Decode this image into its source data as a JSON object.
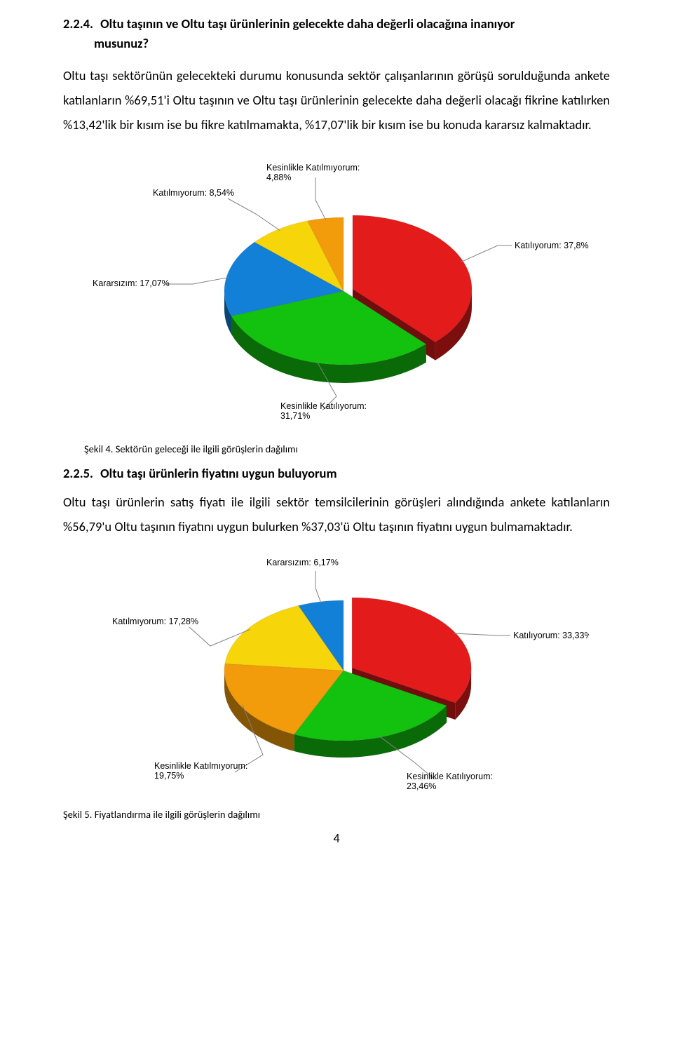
{
  "section1": {
    "number": "2.2.4.",
    "title_line1": "Oltu taşının ve Oltu taşı ürünlerinin gelecekte daha değerli olacağına inanıyor",
    "title_line2": "musunuz?",
    "paragraph": "Oltu taşı sektörünün gelecekteki durumu konusunda sektör çalışanlarının görüşü sorulduğunda ankete katılanların %69,51'i Oltu taşının ve Oltu taşı ürünlerinin gelecekte daha değerli olacağı fikrine katılırken %13,42'lik bir kısım ise bu fikre katılmamakta, %17,07'lik bir kısım ise bu konuda kararsız kalmaktadır."
  },
  "chart1": {
    "type": "pie",
    "background_color": "#ffffff",
    "slices": [
      {
        "label": "Katılıyorum:",
        "pct": "37,8%",
        "value": 37.8,
        "color": "#e31b1b"
      },
      {
        "label": "Kesinlikle Katılıyorum:",
        "pct": "31,71%",
        "value": 31.71,
        "color": "#13c20f"
      },
      {
        "label": "Kararsızım:",
        "pct": "17,07%",
        "value": 17.07,
        "color": "#1280d6"
      },
      {
        "label": "Katılmıyorum:",
        "pct": "8,54%",
        "value": 8.54,
        "color": "#f7d50b"
      },
      {
        "label": "Kesinlikle Katılmıyorum:",
        "pct": "4,88%",
        "value": 4.88,
        "color": "#f29b0b"
      }
    ],
    "label_fontsize": 12.5,
    "pulled_slice_index": 0,
    "caption": "Şekil 4. Sektörün geleceği ile ilgili görüşlerin dağılımı"
  },
  "section2": {
    "number": "2.2.5.",
    "title": "Oltu taşı ürünlerin fiyatını uygun buluyorum",
    "paragraph": "Oltu taşı ürünlerin satış fiyatı ile ilgili sektör temsilcilerinin görüşleri alındığında ankete katılanların %56,79'u Oltu taşının fiyatını uygun bulurken %37,03'ü Oltu taşının fiyatını uygun bulmamaktadır."
  },
  "chart2": {
    "type": "pie",
    "background_color": "#ffffff",
    "slices": [
      {
        "label": "Katılıyorum:",
        "pct": "33,33%",
        "value": 33.33,
        "color": "#e31b1b"
      },
      {
        "label": "Kesinlikle Katılıyorum:",
        "pct": "23,46%",
        "value": 23.46,
        "color": "#13c20f"
      },
      {
        "label": "Kesinlikle Katılmıyorum:",
        "pct": "19,75%",
        "value": 19.75,
        "color": "#f29b0b"
      },
      {
        "label": "Katılmıyorum:",
        "pct": "17,28%",
        "value": 17.28,
        "color": "#f7d50b"
      },
      {
        "label": "Kararsızım:",
        "pct": "6,17%",
        "value": 6.17,
        "color": "#1280d6"
      }
    ],
    "label_fontsize": 12.5,
    "pulled_slice_index": 0,
    "caption": "Şekil 5. Fiyatlandırma ile ilgili görüşlerin dağılımı"
  },
  "page_number": "4"
}
